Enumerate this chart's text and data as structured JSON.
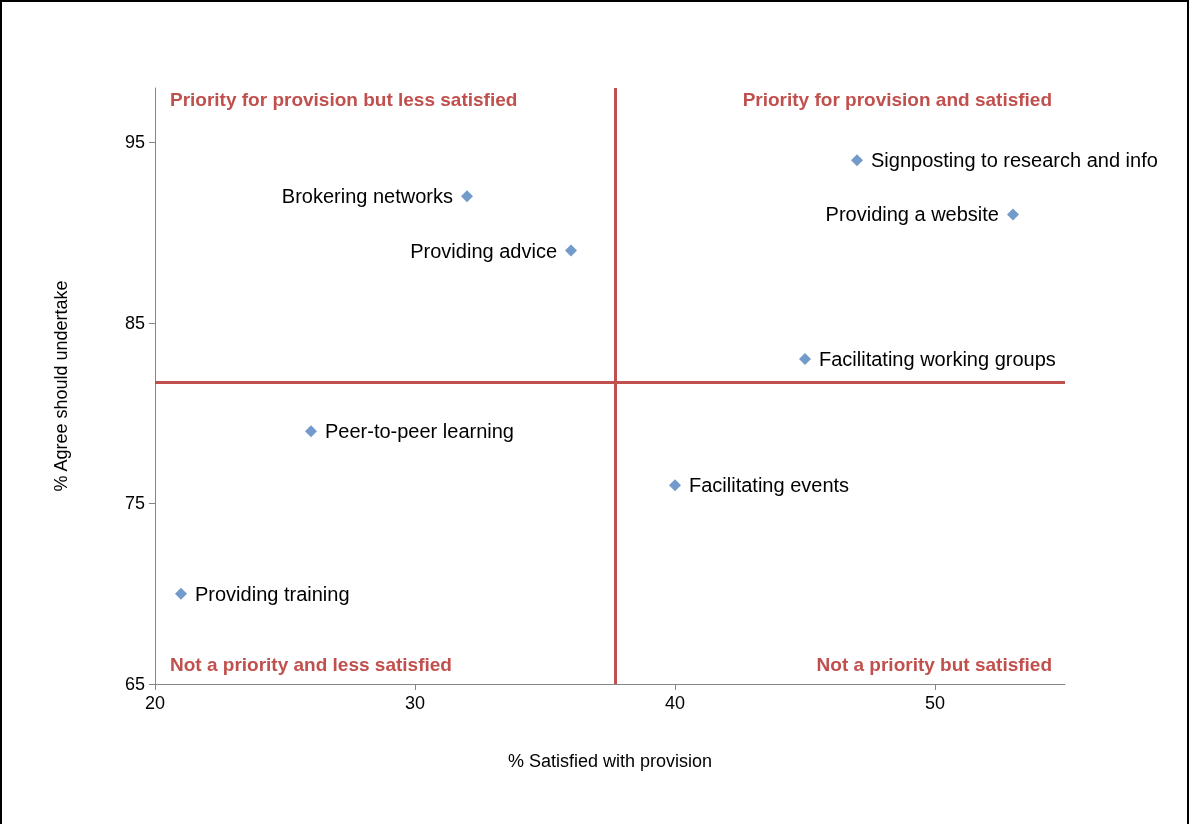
{
  "chart_data": {
    "type": "scatter",
    "xlabel": "% Satisfied with provision",
    "ylabel": "% Agree should undertake",
    "x": [
      47,
      53,
      32,
      36,
      45,
      26,
      40,
      21
    ],
    "values": [
      94,
      91,
      92,
      89,
      83,
      79,
      76,
      70
    ],
    "color": "#4f81bd",
    "marker": "diamond",
    "xlim": [
      20,
      55
    ],
    "xticks": [
      20,
      30,
      40,
      50
    ],
    "ylim": [
      65,
      98
    ],
    "yticks": [
      65,
      75,
      85,
      95
    ],
    "ref_lines": [
      {
        "axis": "x",
        "value": 37.7,
        "color": "#c0504d"
      },
      {
        "axis": "y",
        "value": 81.7,
        "color": "#c0504d"
      }
    ],
    "annotations": [
      "Priority for provision but less satisfied",
      "Priority for provision and satisfied",
      "Not a priority and less satisfied",
      "Not a priority but satisfied",
      {
        "text": "Signposting to research and info",
        "x": 47,
        "y": 94
      },
      {
        "text": "Providing a website",
        "x": 53,
        "y": 91
      },
      {
        "text": "Brokering networks",
        "x": 32,
        "y": 92
      },
      {
        "text": "Providing advice",
        "x": 36,
        "y": 89
      },
      {
        "text": "Facilitating working groups",
        "x": 45,
        "y": 83
      },
      {
        "text": "Peer-to-peer learning",
        "x": 26,
        "y": 79
      },
      {
        "text": "Facilitating events",
        "x": 40,
        "y": 76
      },
      {
        "text": "Providing training",
        "x": 21,
        "y": 70
      }
    ]
  }
}
